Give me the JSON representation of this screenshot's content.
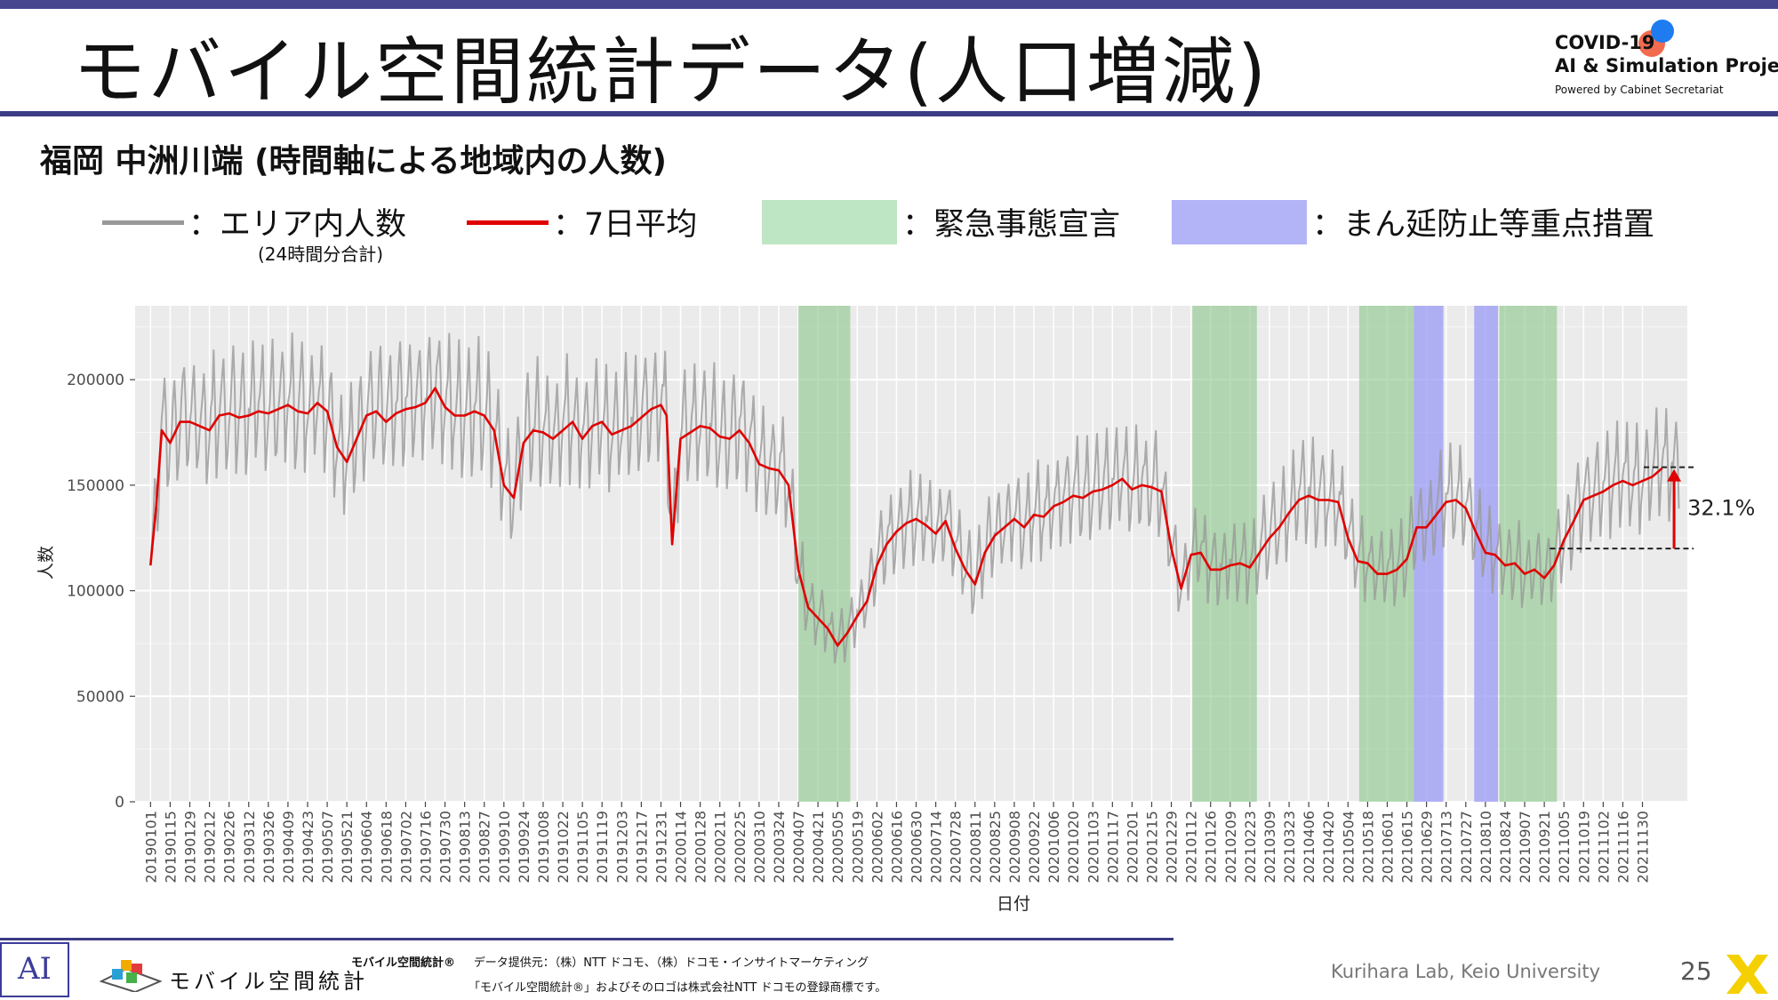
{
  "header": {
    "title": "モバイル空間統計データ(人口増減)",
    "logo_line1": "COVID-19",
    "logo_line2": "AI & Simulation Project",
    "logo_line3": "Powered by Cabinet Secretariat",
    "accent_color": "#3c3c84"
  },
  "subtitle": "福岡 中洲川端 (時間軸による地域内の人数)",
  "legend": {
    "area_count": "：エリア内人数",
    "area_count_sub": "(24時間分合計)",
    "avg7": "：7日平均",
    "emergency": "：緊急事態宣言",
    "priority": "：まん延防止等重点措置",
    "colors": {
      "gray": "#999999",
      "red": "#e00000",
      "green": "#bfe6c4",
      "blue": "#b3b3f7"
    }
  },
  "chart_data": {
    "type": "line",
    "xlabel": "日付",
    "ylabel": "人数",
    "ylim": [
      0,
      235000
    ],
    "grid": true,
    "yticks": [
      0,
      50000,
      100000,
      150000,
      200000
    ],
    "ytick_labels": [
      "0",
      "50000",
      "100000",
      "150000",
      "200000"
    ],
    "xticks": [
      "20190101",
      "20190115",
      "20190129",
      "20190212",
      "20190226",
      "20190312",
      "20190326",
      "20190409",
      "20190423",
      "20190507",
      "20190521",
      "20190604",
      "20190618",
      "20190702",
      "20190716",
      "20190730",
      "20190813",
      "20190827",
      "20190910",
      "20190924",
      "20191008",
      "20191022",
      "20191105",
      "20191119",
      "20191203",
      "20191217",
      "20191231",
      "20200114",
      "20200128",
      "20200211",
      "20200225",
      "20200310",
      "20200324",
      "20200407",
      "20200421",
      "20200505",
      "20200519",
      "20200602",
      "20200616",
      "20200630",
      "20200714",
      "20200728",
      "20200811",
      "20200825",
      "20200908",
      "20200922",
      "20201006",
      "20201020",
      "20201103",
      "20201117",
      "20201201",
      "20201215",
      "20201229",
      "20210112",
      "20210126",
      "20210209",
      "20210223",
      "20210309",
      "20210323",
      "20210406",
      "20210420",
      "20210504",
      "20210518",
      "20210601",
      "20210615",
      "20210629",
      "20210713",
      "20210727",
      "20210810",
      "20210824",
      "20210907",
      "20210921",
      "20211005",
      "20211019",
      "20211102",
      "20211116",
      "20211130"
    ],
    "x_range": [
      "20181221",
      "20220101"
    ],
    "shaded_periods": [
      {
        "type": "emergency",
        "start": "20200407",
        "end": "20200514"
      },
      {
        "type": "emergency",
        "start": "20210113",
        "end": "20210228"
      },
      {
        "type": "emergency",
        "start": "20210512",
        "end": "20210620"
      },
      {
        "type": "priority",
        "start": "20210620",
        "end": "20210711"
      },
      {
        "type": "priority",
        "start": "20210802",
        "end": "20210819"
      },
      {
        "type": "emergency",
        "start": "20210820",
        "end": "20210930"
      }
    ],
    "series": [
      {
        "name": "7日平均",
        "style": "red",
        "points": [
          [
            "20190101",
            112000
          ],
          [
            "20190105",
            140000
          ],
          [
            "20190109",
            176000
          ],
          [
            "20190115",
            170000
          ],
          [
            "20190122",
            180000
          ],
          [
            "20190129",
            180000
          ],
          [
            "20190205",
            178000
          ],
          [
            "20190212",
            176000
          ],
          [
            "20190219",
            183000
          ],
          [
            "20190226",
            184000
          ],
          [
            "20190305",
            182000
          ],
          [
            "20190312",
            183000
          ],
          [
            "20190319",
            185000
          ],
          [
            "20190326",
            184000
          ],
          [
            "20190402",
            186000
          ],
          [
            "20190409",
            188000
          ],
          [
            "20190416",
            185000
          ],
          [
            "20190423",
            184000
          ],
          [
            "20190430",
            189000
          ],
          [
            "20190507",
            185000
          ],
          [
            "20190514",
            168000
          ],
          [
            "20190521",
            161000
          ],
          [
            "20190528",
            172000
          ],
          [
            "20190604",
            183000
          ],
          [
            "20190611",
            185000
          ],
          [
            "20190618",
            180000
          ],
          [
            "20190625",
            184000
          ],
          [
            "20190702",
            186000
          ],
          [
            "20190709",
            187000
          ],
          [
            "20190716",
            189000
          ],
          [
            "20190723",
            196000
          ],
          [
            "20190730",
            187000
          ],
          [
            "20190806",
            183000
          ],
          [
            "20190813",
            183000
          ],
          [
            "20190820",
            185000
          ],
          [
            "20190827",
            183000
          ],
          [
            "20190903",
            176000
          ],
          [
            "20190910",
            150000
          ],
          [
            "20190917",
            144000
          ],
          [
            "20190924",
            170000
          ],
          [
            "20191001",
            176000
          ],
          [
            "20191008",
            175000
          ],
          [
            "20191015",
            172000
          ],
          [
            "20191022",
            176000
          ],
          [
            "20191029",
            180000
          ],
          [
            "20191105",
            172000
          ],
          [
            "20191112",
            178000
          ],
          [
            "20191119",
            180000
          ],
          [
            "20191126",
            174000
          ],
          [
            "20191203",
            176000
          ],
          [
            "20191210",
            178000
          ],
          [
            "20191217",
            182000
          ],
          [
            "20191224",
            186000
          ],
          [
            "20191231",
            188000
          ],
          [
            "20200104",
            183000
          ],
          [
            "20200108",
            122000
          ],
          [
            "20200114",
            172000
          ],
          [
            "20200121",
            175000
          ],
          [
            "20200128",
            178000
          ],
          [
            "20200204",
            177000
          ],
          [
            "20200211",
            173000
          ],
          [
            "20200218",
            172000
          ],
          [
            "20200225",
            176000
          ],
          [
            "20200303",
            170000
          ],
          [
            "20200310",
            160000
          ],
          [
            "20200317",
            158000
          ],
          [
            "20200324",
            157000
          ],
          [
            "20200331",
            150000
          ],
          [
            "20200407",
            110000
          ],
          [
            "20200414",
            92000
          ],
          [
            "20200421",
            87000
          ],
          [
            "20200428",
            82000
          ],
          [
            "20200505",
            74000
          ],
          [
            "20200512",
            80000
          ],
          [
            "20200519",
            88000
          ],
          [
            "20200526",
            95000
          ],
          [
            "20200602",
            112000
          ],
          [
            "20200609",
            122000
          ],
          [
            "20200616",
            128000
          ],
          [
            "20200623",
            132000
          ],
          [
            "20200630",
            134000
          ],
          [
            "20200707",
            131000
          ],
          [
            "20200714",
            127000
          ],
          [
            "20200721",
            133000
          ],
          [
            "20200728",
            120000
          ],
          [
            "20200804",
            110000
          ],
          [
            "20200811",
            103000
          ],
          [
            "20200818",
            118000
          ],
          [
            "20200825",
            126000
          ],
          [
            "20200901",
            130000
          ],
          [
            "20200908",
            134000
          ],
          [
            "20200915",
            130000
          ],
          [
            "20200922",
            136000
          ],
          [
            "20200929",
            135000
          ],
          [
            "20201006",
            140000
          ],
          [
            "20201013",
            142000
          ],
          [
            "20201020",
            145000
          ],
          [
            "20201027",
            144000
          ],
          [
            "20201103",
            147000
          ],
          [
            "20201110",
            148000
          ],
          [
            "20201117",
            150000
          ],
          [
            "20201124",
            153000
          ],
          [
            "20201201",
            148000
          ],
          [
            "20201208",
            150000
          ],
          [
            "20201215",
            149000
          ],
          [
            "20201222",
            147000
          ],
          [
            "20201229",
            120000
          ],
          [
            "20210105",
            101000
          ],
          [
            "20210112",
            117000
          ],
          [
            "20210119",
            118000
          ],
          [
            "20210126",
            110000
          ],
          [
            "20210202",
            110000
          ],
          [
            "20210209",
            112000
          ],
          [
            "20210216",
            113000
          ],
          [
            "20210223",
            111000
          ],
          [
            "20210302",
            118000
          ],
          [
            "20210309",
            125000
          ],
          [
            "20210316",
            130000
          ],
          [
            "20210323",
            137000
          ],
          [
            "20210330",
            143000
          ],
          [
            "20210406",
            145000
          ],
          [
            "20210413",
            143000
          ],
          [
            "20210420",
            143000
          ],
          [
            "20210427",
            142000
          ],
          [
            "20210504",
            125000
          ],
          [
            "20210511",
            114000
          ],
          [
            "20210518",
            113000
          ],
          [
            "20210525",
            108000
          ],
          [
            "20210601",
            108000
          ],
          [
            "20210608",
            110000
          ],
          [
            "20210615",
            115000
          ],
          [
            "20210622",
            130000
          ],
          [
            "20210629",
            130000
          ],
          [
            "20210706",
            136000
          ],
          [
            "20210713",
            142000
          ],
          [
            "20210720",
            143000
          ],
          [
            "20210727",
            139000
          ],
          [
            "20210803",
            128000
          ],
          [
            "20210810",
            118000
          ],
          [
            "20210817",
            117000
          ],
          [
            "20210824",
            112000
          ],
          [
            "20210831",
            113000
          ],
          [
            "20210907",
            108000
          ],
          [
            "20210914",
            110000
          ],
          [
            "20210921",
            106000
          ],
          [
            "20210928",
            112000
          ],
          [
            "20211005",
            124000
          ],
          [
            "20211012",
            133000
          ],
          [
            "20211019",
            143000
          ],
          [
            "20211026",
            145000
          ],
          [
            "20211102",
            147000
          ],
          [
            "20211109",
            150000
          ],
          [
            "20211116",
            152000
          ],
          [
            "20211123",
            150000
          ],
          [
            "20211130",
            152000
          ],
          [
            "20211207",
            154000
          ],
          [
            "20211214",
            158000
          ]
        ]
      }
    ],
    "annotation": {
      "text": "32.1%",
      "low": 120000,
      "high": 158500,
      "date": "20211220"
    }
  },
  "footer": {
    "ai_logo": "AI",
    "logo_text": "モバイル空間統計",
    "provider_name": "モバイル空間統計®",
    "provider_line": "データ提供元：（株）NTT ドコモ、（株）ドコモ・インサイトマーケティング",
    "trademark_line": "「モバイル空間統計®」およびそのロゴは株式会社NTT ドコモの登録商標です。",
    "lab": "Kurihara Lab, Keio University",
    "page": "25"
  }
}
